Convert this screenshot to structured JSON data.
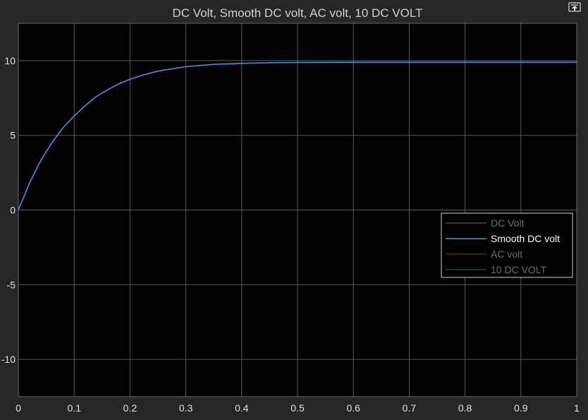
{
  "window": {
    "undock_icon": "undock-icon"
  },
  "colors": {
    "background": "#262626",
    "plot_background": "#000000",
    "grid": "#5a5a5a",
    "axis_text": "#e0e0e0",
    "title_text": "#d0d0d0",
    "legend_border": "#d0d0d0",
    "legend_dim_text": "#6e6e6e",
    "legend_active_text": "#ffffff"
  },
  "chart_data": {
    "type": "line",
    "title": "DC Volt, Smooth DC volt, AC volt, 10 DC VOLT",
    "xlabel": "",
    "ylabel": "",
    "xlim": [
      0,
      1
    ],
    "ylim": [
      -12.5,
      12.5
    ],
    "xticks": [
      0,
      0.1,
      0.2,
      0.3,
      0.4,
      0.5,
      0.6,
      0.7,
      0.8,
      0.9,
      1
    ],
    "xtick_labels": [
      "0",
      "0.1",
      "0.2",
      "0.3",
      "0.4",
      "0.5",
      "0.6",
      "0.7",
      "0.8",
      "0.9",
      "1"
    ],
    "yticks": [
      -10,
      -5,
      0,
      5,
      10
    ],
    "ytick_labels": [
      "-10",
      "-5",
      "0",
      "5",
      "10"
    ],
    "grid": true,
    "legend_position": "right",
    "series": [
      {
        "name": "DC Volt",
        "color": "#7f6a1f",
        "visible": false,
        "x": [],
        "y": []
      },
      {
        "name": "Smooth DC volt",
        "color": "#3b96e0",
        "visible": true,
        "x": [
          0,
          0.02,
          0.04,
          0.06,
          0.08,
          0.1,
          0.12,
          0.14,
          0.16,
          0.18,
          0.2,
          0.22,
          0.25,
          0.3,
          0.35,
          0.4,
          0.45,
          0.5,
          0.6,
          0.7,
          0.8,
          0.9,
          1.0
        ],
        "y": [
          0,
          1.8,
          3.3,
          4.5,
          5.5,
          6.3,
          7.0,
          7.6,
          8.05,
          8.45,
          8.75,
          9.0,
          9.3,
          9.6,
          9.75,
          9.82,
          9.86,
          9.88,
          9.9,
          9.9,
          9.9,
          9.9,
          9.9
        ]
      },
      {
        "name": "AC volt",
        "color": "#8a3a1c",
        "visible": false,
        "x": [],
        "y": []
      },
      {
        "name": "10 DC VOLT",
        "color": "#2f6b2a",
        "visible": false,
        "x": [],
        "y": []
      }
    ]
  }
}
